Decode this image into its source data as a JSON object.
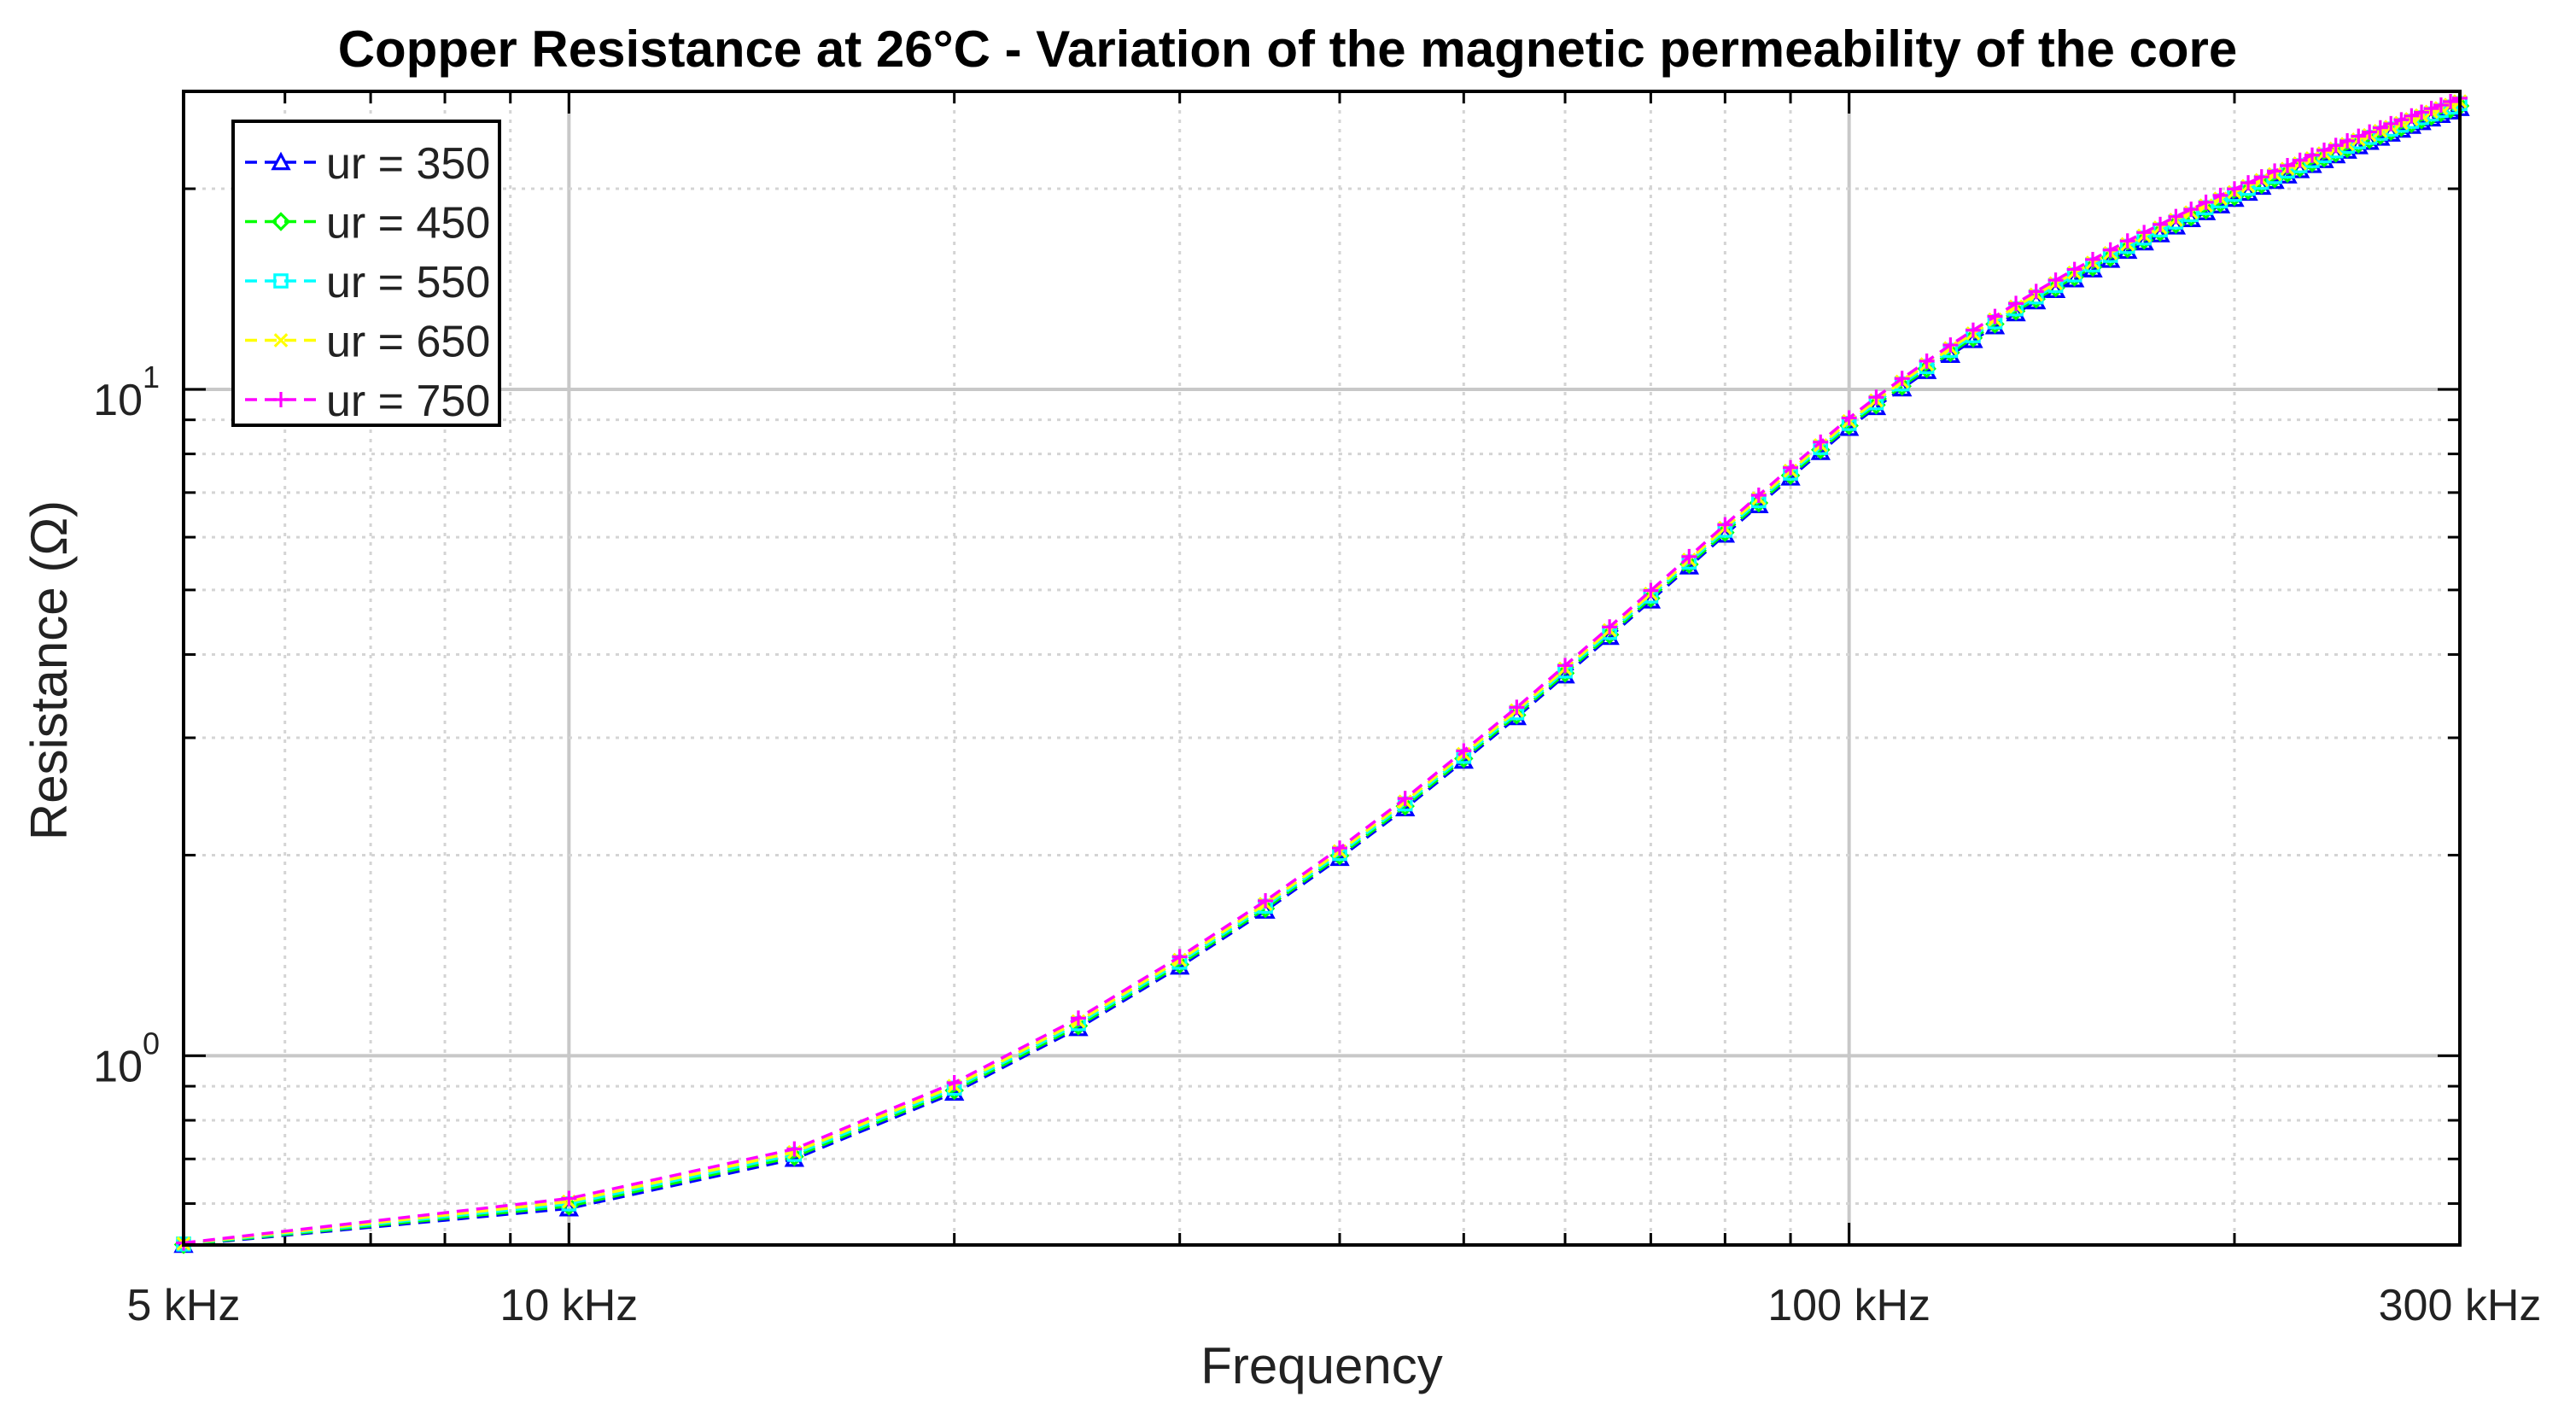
{
  "chart_data": {
    "type": "line",
    "title": "Copper Resistance at 26°C - Variation of the magnetic permeability of the core",
    "xlabel": "Frequency",
    "ylabel": "Resistance (Ω)",
    "x_scale": "log",
    "y_scale": "log",
    "xlim_hz": [
      5000,
      300000
    ],
    "ylim_ohm": [
      0.52,
      28
    ],
    "x_ticks": [
      {
        "value": 5000,
        "label": "5 kHz"
      },
      {
        "value": 10000,
        "label": "10 kHz"
      },
      {
        "value": 100000,
        "label": "100 kHz"
      },
      {
        "value": 300000,
        "label": "300 kHz"
      }
    ],
    "y_ticks": [
      {
        "value": 1,
        "base": "10",
        "exp": "0"
      },
      {
        "value": 10,
        "base": "10",
        "exp": "1"
      }
    ],
    "grid": true,
    "legend_position": "top-left",
    "x_khz": [
      5,
      10,
      15,
      20,
      25,
      30,
      35,
      40,
      45,
      50,
      55,
      60,
      65,
      70,
      75,
      80,
      85,
      90,
      95,
      100,
      105,
      110,
      115,
      120,
      125,
      130,
      135,
      140,
      145,
      150,
      155,
      160,
      165,
      170,
      175,
      180,
      185,
      190,
      195,
      200,
      205,
      210,
      215,
      220,
      225,
      230,
      235,
      240,
      245,
      250,
      255,
      260,
      265,
      270,
      275,
      280,
      285,
      290,
      295,
      300
    ],
    "series": [
      {
        "name": "ur = 350",
        "color": "#0000ff",
        "marker": "triangle",
        "scale": 1.0
      },
      {
        "name": "ur = 450",
        "color": "#00ff00",
        "marker": "diamond",
        "scale": 1.008
      },
      {
        "name": "ur = 550",
        "color": "#00ffff",
        "marker": "square",
        "scale": 1.016
      },
      {
        "name": "ur = 650",
        "color": "#ffff00",
        "marker": "x",
        "scale": 1.024
      },
      {
        "name": "ur = 750",
        "color": "#ff00ff",
        "marker": "plus",
        "scale": 1.035
      }
    ],
    "base_values_ohm": [
      0.52,
      0.59,
      0.7,
      0.88,
      1.1,
      1.36,
      1.65,
      1.98,
      2.35,
      2.77,
      3.22,
      3.72,
      4.25,
      4.82,
      5.42,
      6.05,
      6.7,
      7.37,
      8.05,
      8.75,
      9.4,
      10.03,
      10.65,
      11.26,
      11.85,
      12.43,
      13.0,
      13.55,
      14.09,
      14.62,
      15.13,
      15.64,
      16.13,
      16.61,
      17.08,
      17.55,
      18.0,
      18.44,
      18.88,
      19.31,
      19.72,
      20.13,
      20.54,
      20.93,
      21.32,
      21.7,
      22.07,
      22.44,
      22.8,
      23.16,
      23.51,
      23.85,
      24.19,
      24.52,
      24.85,
      25.17,
      25.49,
      25.8,
      26.11,
      26.42
    ]
  }
}
